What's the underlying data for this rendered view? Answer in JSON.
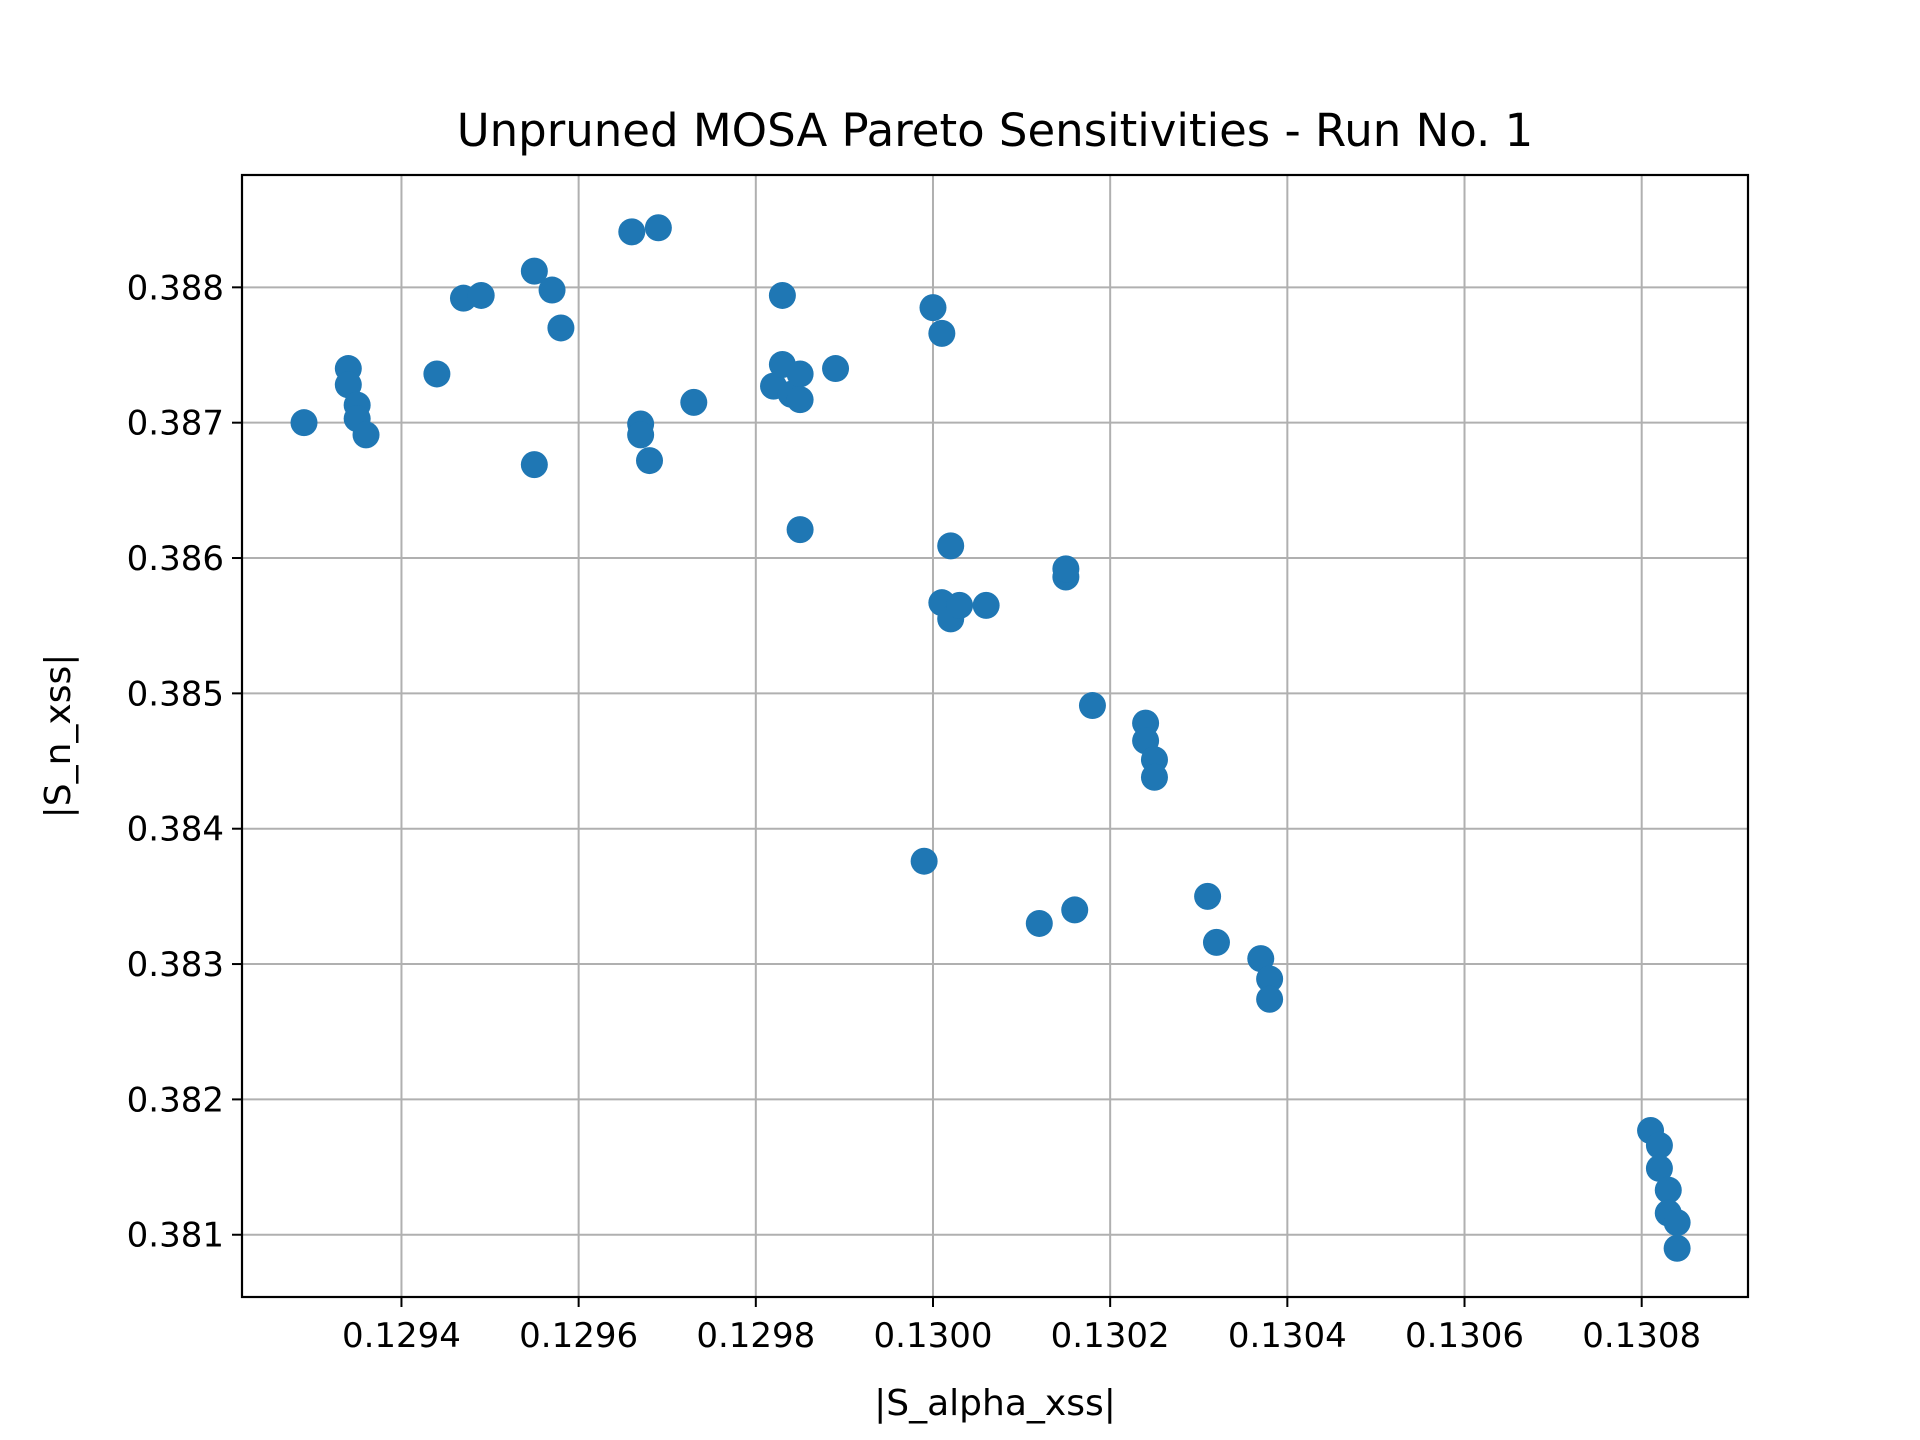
{
  "chart_data": {
    "type": "scatter",
    "title": "Unpruned MOSA Pareto Sensitivities - Run No. 1",
    "xlabel": "|S_alpha_xss|",
    "ylabel": "|S_n_xss|",
    "xlim": [
      0.12922,
      0.13092
    ],
    "ylim": [
      0.38054,
      0.38883
    ],
    "xticks": [
      0.1294,
      0.1296,
      0.1298,
      0.13,
      0.1302,
      0.1304,
      0.1306,
      0.1308
    ],
    "xtick_labels": [
      "0.1294",
      "0.1296",
      "0.1298",
      "0.1300",
      "0.1302",
      "0.1304",
      "0.1306",
      "0.1308"
    ],
    "yticks": [
      0.381,
      0.382,
      0.383,
      0.384,
      0.385,
      0.386,
      0.387,
      0.388
    ],
    "ytick_labels": [
      "0.381",
      "0.382",
      "0.383",
      "0.384",
      "0.385",
      "0.386",
      "0.387",
      "0.388"
    ],
    "grid": true,
    "color": "#1f77b4",
    "series": [
      {
        "x": [
          0.12929,
          0.12934,
          0.12934,
          0.12935,
          0.12935,
          0.12936,
          0.12944,
          0.12947,
          0.12949,
          0.12955,
          0.12955,
          0.12957,
          0.12958,
          0.12966,
          0.12967,
          0.12967,
          0.12968,
          0.12969,
          0.12973,
          0.12982,
          0.12983,
          0.12983,
          0.12984,
          0.12985,
          0.12985,
          0.12985,
          0.12989,
          0.12999,
          0.13,
          0.13001,
          0.13001,
          0.13002,
          0.13002,
          0.13003,
          0.13006,
          0.13012,
          0.13015,
          0.13015,
          0.13016,
          0.13018,
          0.13024,
          0.13024,
          0.13025,
          0.13025,
          0.13031,
          0.13032,
          0.13037,
          0.13038,
          0.13038,
          0.13081,
          0.13082,
          0.13082,
          0.13083,
          0.13083,
          0.13084,
          0.13084
        ],
        "y": [
          0.387,
          0.3874,
          0.38728,
          0.38713,
          0.38703,
          0.38691,
          0.38736,
          0.38792,
          0.38794,
          0.38812,
          0.38669,
          0.38798,
          0.3877,
          0.38841,
          0.38699,
          0.38691,
          0.38672,
          0.38844,
          0.38715,
          0.38727,
          0.38743,
          0.38794,
          0.38721,
          0.38736,
          0.38717,
          0.38621,
          0.3874,
          0.38376,
          0.38785,
          0.38766,
          0.38567,
          0.38555,
          0.38609,
          0.38565,
          0.38565,
          0.3833,
          0.38586,
          0.38592,
          0.3834,
          0.38491,
          0.38478,
          0.38465,
          0.38451,
          0.38438,
          0.3835,
          0.38316,
          0.38304,
          0.38289,
          0.38274,
          0.38177,
          0.38166,
          0.38149,
          0.38133,
          0.38116,
          0.38109,
          0.3809
        ]
      }
    ]
  }
}
